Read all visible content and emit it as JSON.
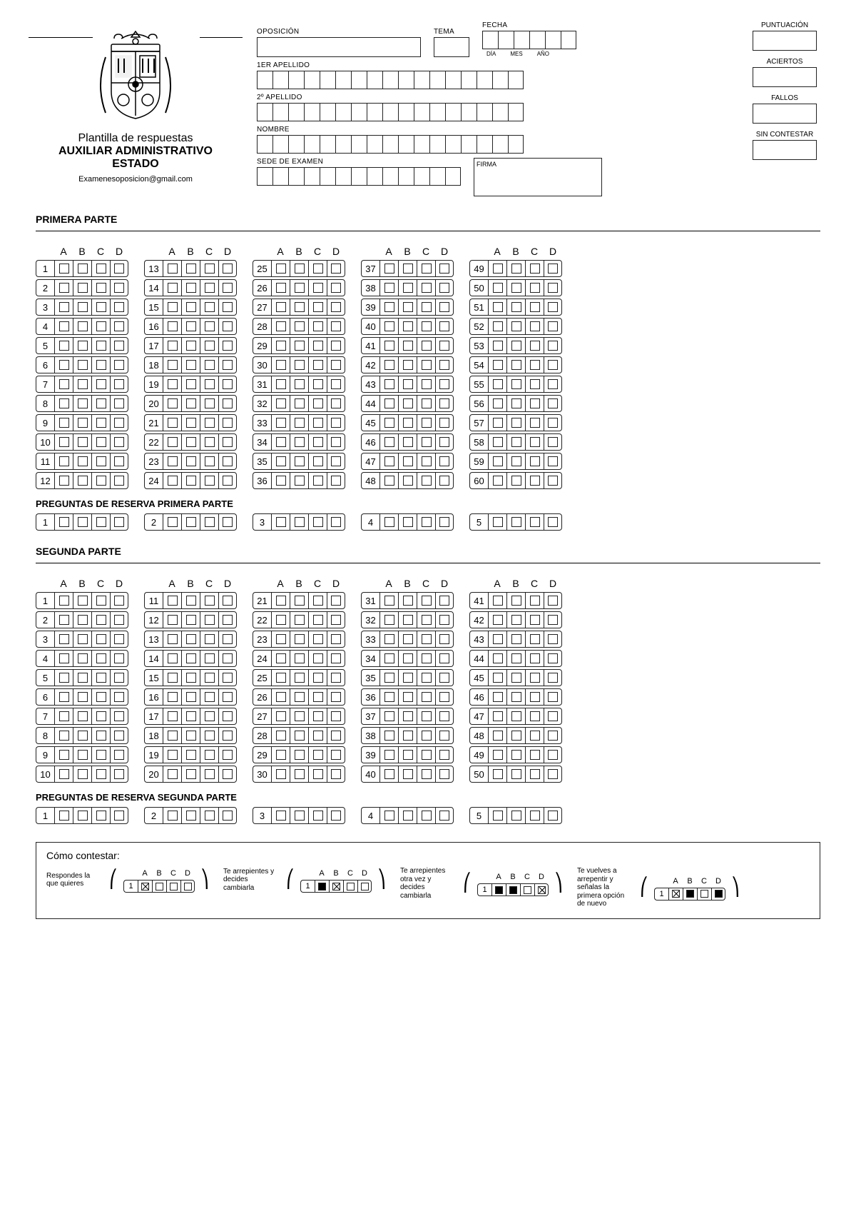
{
  "logo": {
    "title": "Plantilla de respuestas",
    "subtitle1": "AUXILIAR ADMINISTRATIVO",
    "subtitle2": "ESTADO",
    "email": "Examenesoposicion@gmail.com"
  },
  "header_fields": {
    "oposicion": "OPOSICIÓN",
    "tema": "TEMA",
    "fecha": "FECHA",
    "fecha_sub": {
      "dia": "DÍA",
      "mes": "MES",
      "ano": "AÑO"
    },
    "apellido1": "1er APELLIDO",
    "apellido2": "2º APELLIDO",
    "nombre": "NOMBRE",
    "sede": "SEDE DE EXAMEN",
    "firma": "FIRMA",
    "puntuacion": "PUNTUACIÓN",
    "aciertos": "ACIERTOS",
    "fallos": "FALLOS",
    "sin_contestar": "SIN CONTESTAR"
  },
  "field_box_counts": {
    "apellido1": 17,
    "apellido2": 17,
    "nombre": 17,
    "sede": 13,
    "fecha": 6
  },
  "options": [
    "A",
    "B",
    "C",
    "D"
  ],
  "part1": {
    "title": "PRIMERA PARTE",
    "columns": 5,
    "rows_per_col": 12,
    "total": 60,
    "reserve_title": "PREGUNTAS DE RESERVA PRIMERA PARTE",
    "reserve_count": 5
  },
  "part2": {
    "title": "SEGUNDA PARTE",
    "columns": 5,
    "rows_per_col": 10,
    "total": 50,
    "reserve_title": "PREGUNTAS DE RESERVA SEGUNDA PARTE",
    "reserve_count": 5
  },
  "instructions": {
    "title": "Cómo contestar:",
    "steps": [
      {
        "text": "Respondes la que quieres",
        "marks": [
          "x",
          "",
          "",
          ""
        ]
      },
      {
        "text": "Te arrepientes y decides cambiarla",
        "marks": [
          "fill",
          "x",
          "",
          ""
        ]
      },
      {
        "text": "Te arrepientes otra vez y decides cambiarla",
        "marks": [
          "fill",
          "fill",
          "",
          "x"
        ]
      },
      {
        "text": "Te vuelves a arrepentir y señalas la primera opción de nuevo",
        "marks": [
          "x",
          "fill",
          "",
          "fill"
        ]
      }
    ],
    "example_num": "1"
  },
  "colors": {
    "border": "#222222",
    "text": "#000000",
    "background": "#ffffff"
  }
}
